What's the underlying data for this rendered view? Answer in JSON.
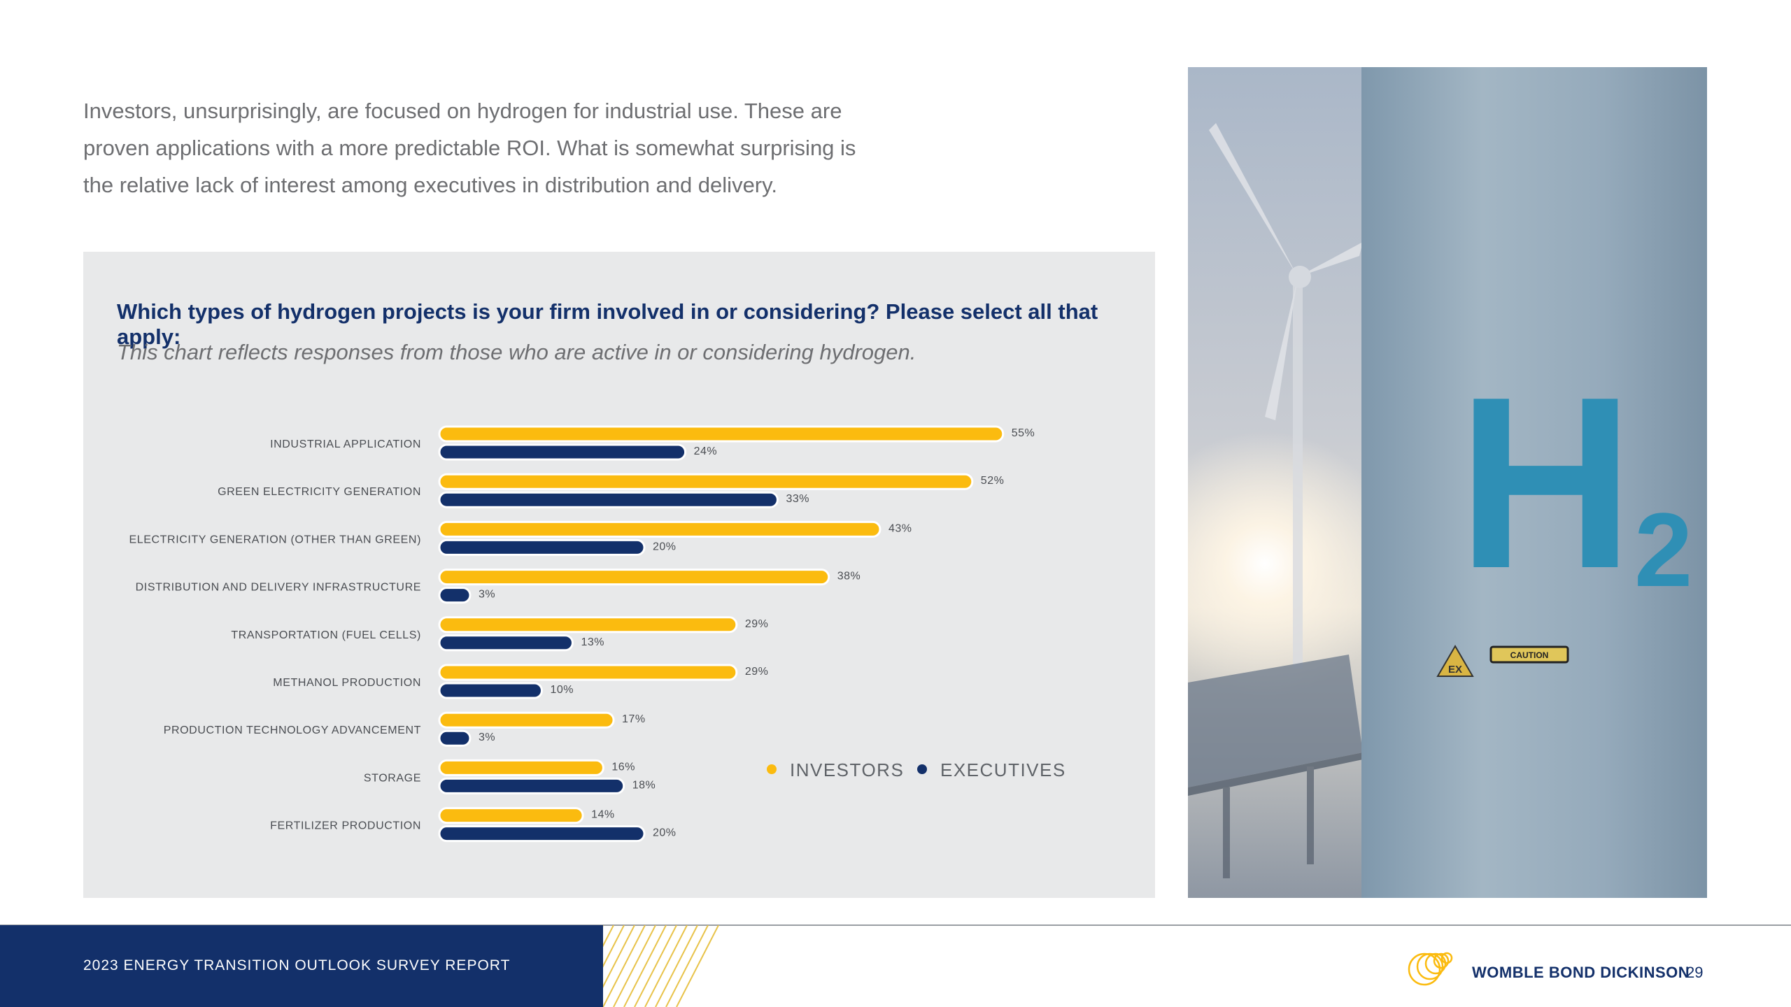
{
  "intro_text": "Investors, unsurprisingly, are focused on hydrogen for industrial use. These are proven applications with a more predictable ROI. What is somewhat surprising is the relative lack of interest among executives in distribution and delivery.",
  "chart_data": {
    "type": "bar",
    "orientation": "horizontal",
    "title": "Which types of hydrogen projects is your firm involved in or considering? Please select all that apply:",
    "subtitle": "This chart reflects responses from those who are active in or considering hydrogen.",
    "categories": [
      "INDUSTRIAL APPLICATION",
      "GREEN ELECTRICITY GENERATION",
      "ELECTRICITY GENERATION (OTHER THAN GREEN)",
      "DISTRIBUTION AND DELIVERY INFRASTRUCTURE",
      "TRANSPORTATION (FUEL CELLS)",
      "METHANOL PRODUCTION",
      "PRODUCTION TECHNOLOGY ADVANCEMENT",
      "STORAGE",
      "FERTILIZER PRODUCTION"
    ],
    "series": [
      {
        "name": "INVESTORS",
        "color": "#fbbb0f",
        "values": [
          55,
          52,
          43,
          38,
          29,
          29,
          17,
          16,
          14
        ]
      },
      {
        "name": "EXECUTIVES",
        "color": "#13306a",
        "values": [
          24,
          33,
          20,
          3,
          13,
          10,
          3,
          18,
          20
        ]
      }
    ],
    "value_suffix": "%",
    "xlim": [
      0,
      60
    ],
    "grid": false,
    "legend_position": "right"
  },
  "image": {
    "h2_symbol": "H",
    "h2_subscript": "2",
    "warning_sign": "EX",
    "caution_label": "CAUTION"
  },
  "footer": {
    "report_title": "2023 ENERGY TRANSITION OUTLOOK SURVEY REPORT",
    "brand": "WOMBLE BOND DICKINSON",
    "page_number": "29"
  },
  "colors": {
    "navy": "#13306a",
    "gold": "#fbbb0f",
    "panel": "#e8e9ea"
  }
}
